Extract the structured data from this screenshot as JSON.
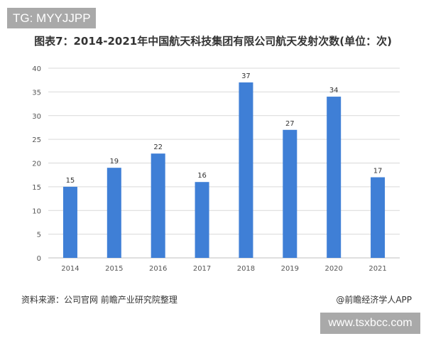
{
  "watermark_top": "TG: MYYJJPP",
  "watermark_bottom": "www.tsxbcc.com",
  "source": "资料来源：公司官网 前瞻产业研究院整理",
  "credit": "@前瞻经济学人APP",
  "colors": {
    "bar": "#3f7fd6",
    "grid": "#d9d9d9"
  },
  "chart_data": {
    "type": "bar",
    "title": "图表7：2014-2021年中国航天科技集团有限公司航天发射次数(单位：次)",
    "categories": [
      "2014",
      "2015",
      "2016",
      "2017",
      "2018",
      "2019",
      "2020",
      "2021"
    ],
    "values": [
      15,
      19,
      22,
      16,
      37,
      27,
      34,
      17
    ],
    "yticks": [
      0,
      5,
      10,
      15,
      20,
      25,
      30,
      35,
      40
    ],
    "ylim": [
      0,
      40
    ],
    "xlabel": "",
    "ylabel": "",
    "grid": true,
    "legend": "none"
  }
}
